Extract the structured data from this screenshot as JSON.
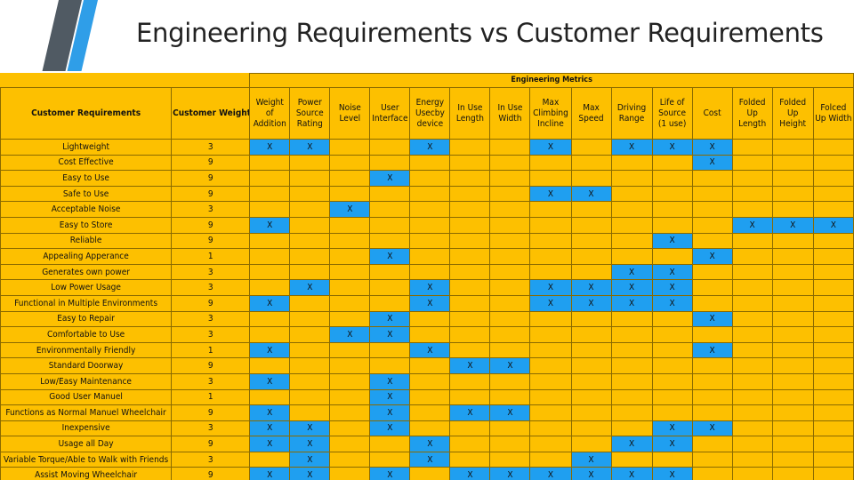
{
  "slide_title": "Engineering Requirements vs Customer Requirements",
  "table": {
    "group_header": "Engineering Metrics",
    "customer_requirements_header": "Customer Requirements",
    "customer_weights_header": "Customer Weights",
    "engineering_metrics": [
      "Weight of Addition",
      "Power Source Rating",
      "Noise Level",
      "User Interface",
      "Energy Usecby device",
      "In Use Length",
      "In Use Width",
      "Max Climbing Incline",
      "Max Speed",
      "Driving Range",
      "Life of Source (1 use)",
      "Cost",
      "Folded Up Length",
      "Folded Up Height",
      "Folced Up Width"
    ],
    "mark": "X",
    "mark_color": "#1f9ff0",
    "cell_color": "#fdc000",
    "rows": [
      {
        "requirement": "Lightweight",
        "weight": "3",
        "marks": [
          1,
          1,
          0,
          0,
          1,
          0,
          0,
          1,
          0,
          1,
          1,
          1,
          0,
          0,
          0
        ]
      },
      {
        "requirement": "Cost Effective",
        "weight": "9",
        "marks": [
          0,
          0,
          0,
          0,
          0,
          0,
          0,
          0,
          0,
          0,
          0,
          1,
          0,
          0,
          0
        ]
      },
      {
        "requirement": "Easy to Use",
        "weight": "9",
        "marks": [
          0,
          0,
          0,
          1,
          0,
          0,
          0,
          0,
          0,
          0,
          0,
          0,
          0,
          0,
          0
        ]
      },
      {
        "requirement": "Safe to Use",
        "weight": "9",
        "marks": [
          0,
          0,
          0,
          0,
          0,
          0,
          0,
          1,
          1,
          0,
          0,
          0,
          0,
          0,
          0
        ]
      },
      {
        "requirement": "Acceptable Noise",
        "weight": "3",
        "marks": [
          0,
          0,
          1,
          0,
          0,
          0,
          0,
          0,
          0,
          0,
          0,
          0,
          0,
          0,
          0
        ]
      },
      {
        "requirement": "Easy to Store",
        "weight": "9",
        "marks": [
          1,
          0,
          0,
          0,
          0,
          0,
          0,
          0,
          0,
          0,
          0,
          0,
          1,
          1,
          1
        ]
      },
      {
        "requirement": "Reliable",
        "weight": "9",
        "marks": [
          0,
          0,
          0,
          0,
          0,
          0,
          0,
          0,
          0,
          0,
          1,
          0,
          0,
          0,
          0
        ]
      },
      {
        "requirement": "Appealing Apperance",
        "weight": "1",
        "marks": [
          0,
          0,
          0,
          1,
          0,
          0,
          0,
          0,
          0,
          0,
          0,
          1,
          0,
          0,
          0
        ]
      },
      {
        "requirement": "Generates own power",
        "weight": "3",
        "marks": [
          0,
          0,
          0,
          0,
          0,
          0,
          0,
          0,
          0,
          1,
          1,
          0,
          0,
          0,
          0
        ]
      },
      {
        "requirement": "Low Power Usage",
        "weight": "3",
        "marks": [
          0,
          1,
          0,
          0,
          1,
          0,
          0,
          1,
          1,
          1,
          1,
          0,
          0,
          0,
          0
        ]
      },
      {
        "requirement": "Functional in Multiple Environments",
        "weight": "9",
        "marks": [
          1,
          0,
          0,
          0,
          1,
          0,
          0,
          1,
          1,
          1,
          1,
          0,
          0,
          0,
          0
        ]
      },
      {
        "requirement": "Easy to Repair",
        "weight": "3",
        "marks": [
          0,
          0,
          0,
          1,
          0,
          0,
          0,
          0,
          0,
          0,
          0,
          1,
          0,
          0,
          0
        ]
      },
      {
        "requirement": "Comfortable to Use",
        "weight": "3",
        "marks": [
          0,
          0,
          1,
          1,
          0,
          0,
          0,
          0,
          0,
          0,
          0,
          0,
          0,
          0,
          0
        ]
      },
      {
        "requirement": "Environmentally Friendly",
        "weight": "1",
        "marks": [
          1,
          0,
          0,
          0,
          1,
          0,
          0,
          0,
          0,
          0,
          0,
          1,
          0,
          0,
          0
        ]
      },
      {
        "requirement": "Standard Doorway",
        "weight": "9",
        "marks": [
          0,
          0,
          0,
          0,
          0,
          1,
          1,
          0,
          0,
          0,
          0,
          0,
          0,
          0,
          0
        ]
      },
      {
        "requirement": "Low/Easy Maintenance",
        "weight": "3",
        "marks": [
          1,
          0,
          0,
          1,
          0,
          0,
          0,
          0,
          0,
          0,
          0,
          0,
          0,
          0,
          0
        ]
      },
      {
        "requirement": "Good User Manuel",
        "weight": "1",
        "marks": [
          0,
          0,
          0,
          1,
          0,
          0,
          0,
          0,
          0,
          0,
          0,
          0,
          0,
          0,
          0
        ]
      },
      {
        "requirement": "Functions as Normal Manuel Wheelchair",
        "weight": "9",
        "marks": [
          1,
          0,
          0,
          1,
          0,
          1,
          1,
          0,
          0,
          0,
          0,
          0,
          0,
          0,
          0
        ]
      },
      {
        "requirement": "Inexpensive",
        "weight": "3",
        "marks": [
          1,
          1,
          0,
          1,
          0,
          0,
          0,
          0,
          0,
          0,
          1,
          1,
          0,
          0,
          0
        ]
      },
      {
        "requirement": "Usage all Day",
        "weight": "9",
        "marks": [
          1,
          1,
          0,
          0,
          1,
          0,
          0,
          0,
          0,
          1,
          1,
          0,
          0,
          0,
          0
        ]
      },
      {
        "requirement": "Variable Torque/Able to Walk with Friends",
        "weight": "3",
        "marks": [
          0,
          1,
          0,
          0,
          1,
          0,
          0,
          0,
          1,
          0,
          0,
          0,
          0,
          0,
          0
        ]
      },
      {
        "requirement": "Assist Moving Wheelchair",
        "weight": "9",
        "marks": [
          1,
          1,
          0,
          1,
          0,
          1,
          1,
          1,
          1,
          1,
          1,
          0,
          0,
          0,
          0
        ]
      }
    ]
  }
}
